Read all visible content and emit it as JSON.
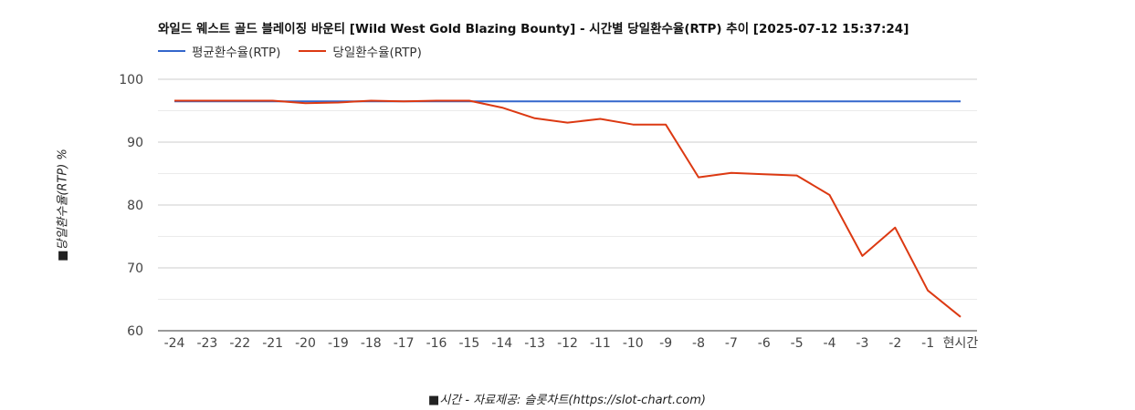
{
  "title": "와일드 웨스트 골드 블레이징 바운티 [Wild West Gold Blazing Bounty] - 시간별 당일환수율(RTP) 추이 [2025-07-12 15:37:24]",
  "colors": {
    "average": "#3366cc",
    "daily": "#dc3912",
    "grid": "#cccccc",
    "axis": "#333333"
  },
  "chart_data": {
    "type": "line",
    "title": "와일드 웨스트 골드 블레이징 바운티 [Wild West Gold Blazing Bounty] - 시간별 당일환수율(RTP) 추이 [2025-07-12 15:37:24]",
    "xlabel": "■시간 - 자료제공: 슬롯차트(https://slot-chart.com)",
    "ylabel": "■당일환수율(RTP) %",
    "ylim": [
      60,
      100
    ],
    "yticks": [
      "60",
      "70",
      "80",
      "90",
      "100"
    ],
    "grid": true,
    "legend_position": "top-left",
    "categories": [
      "-24",
      "-23",
      "-22",
      "-21",
      "-20",
      "-19",
      "-18",
      "-17",
      "-16",
      "-15",
      "-14",
      "-13",
      "-12",
      "-11",
      "-10",
      "-9",
      "-8",
      "-7",
      "-6",
      "-5",
      "-4",
      "-3",
      "-2",
      "-1",
      "현시간"
    ],
    "series": [
      {
        "name": "평균환수율(RTP)",
        "values": [
          96.5,
          96.5,
          96.5,
          96.5,
          96.5,
          96.5,
          96.5,
          96.5,
          96.5,
          96.5,
          96.5,
          96.5,
          96.5,
          96.5,
          96.5,
          96.5,
          96.5,
          96.5,
          96.5,
          96.5,
          96.5,
          96.5,
          96.5,
          96.5,
          96.5
        ]
      },
      {
        "name": "당일환수율(RTP)",
        "values": [
          96.6,
          96.6,
          96.6,
          96.6,
          96.2,
          96.3,
          96.6,
          96.5,
          96.6,
          96.6,
          95.5,
          93.8,
          93.1,
          93.7,
          92.8,
          92.8,
          84.4,
          85.1,
          84.9,
          84.7,
          81.6,
          71.9,
          76.4,
          66.4,
          62.2
        ]
      }
    ]
  }
}
